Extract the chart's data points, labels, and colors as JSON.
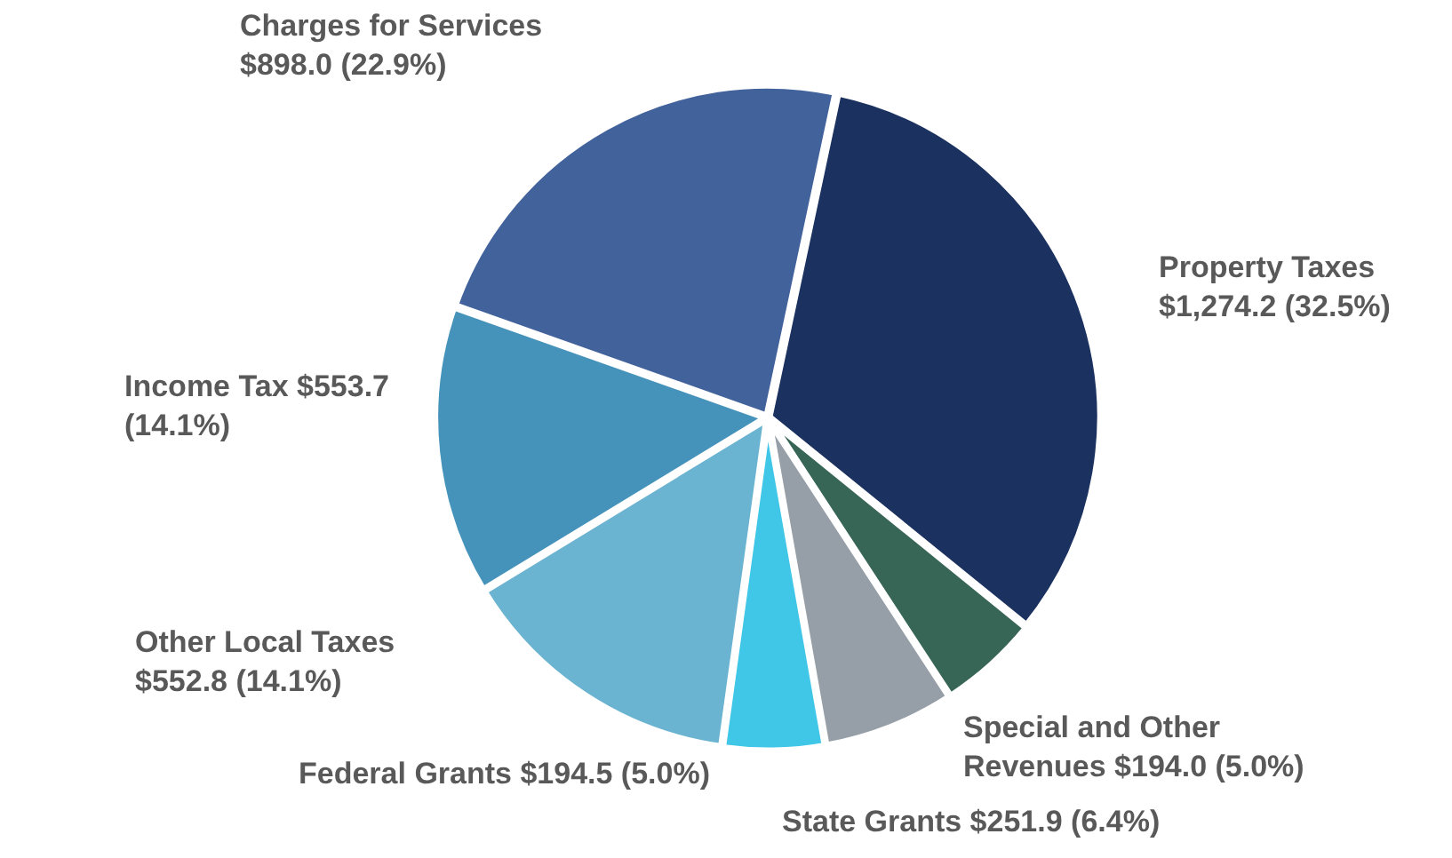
{
  "chart_data": {
    "type": "pie",
    "categories": [
      "Property Taxes",
      "Special and Other Revenues",
      "State Grants",
      "Federal Grants",
      "Other Local Taxes",
      "Income Tax",
      "Charges for Services"
    ],
    "values": [
      1274.2,
      194.0,
      251.9,
      194.5,
      552.8,
      553.7,
      898.0
    ],
    "value_labels": [
      "$1,274.2 (32.5%)",
      "$194.0 (5.0%)",
      "$251.9 (6.4%)",
      "$194.5 (5.0%)",
      "$552.8 (14.1%)",
      "$553.7 (14.1%)",
      "$898.0 (22.9%)"
    ],
    "colors": [
      "#1b3160",
      "#376556",
      "#969fa7",
      "#40c6e6",
      "#6ab3d1",
      "#4592ba",
      "#42629c"
    ],
    "legend": false
  }
}
